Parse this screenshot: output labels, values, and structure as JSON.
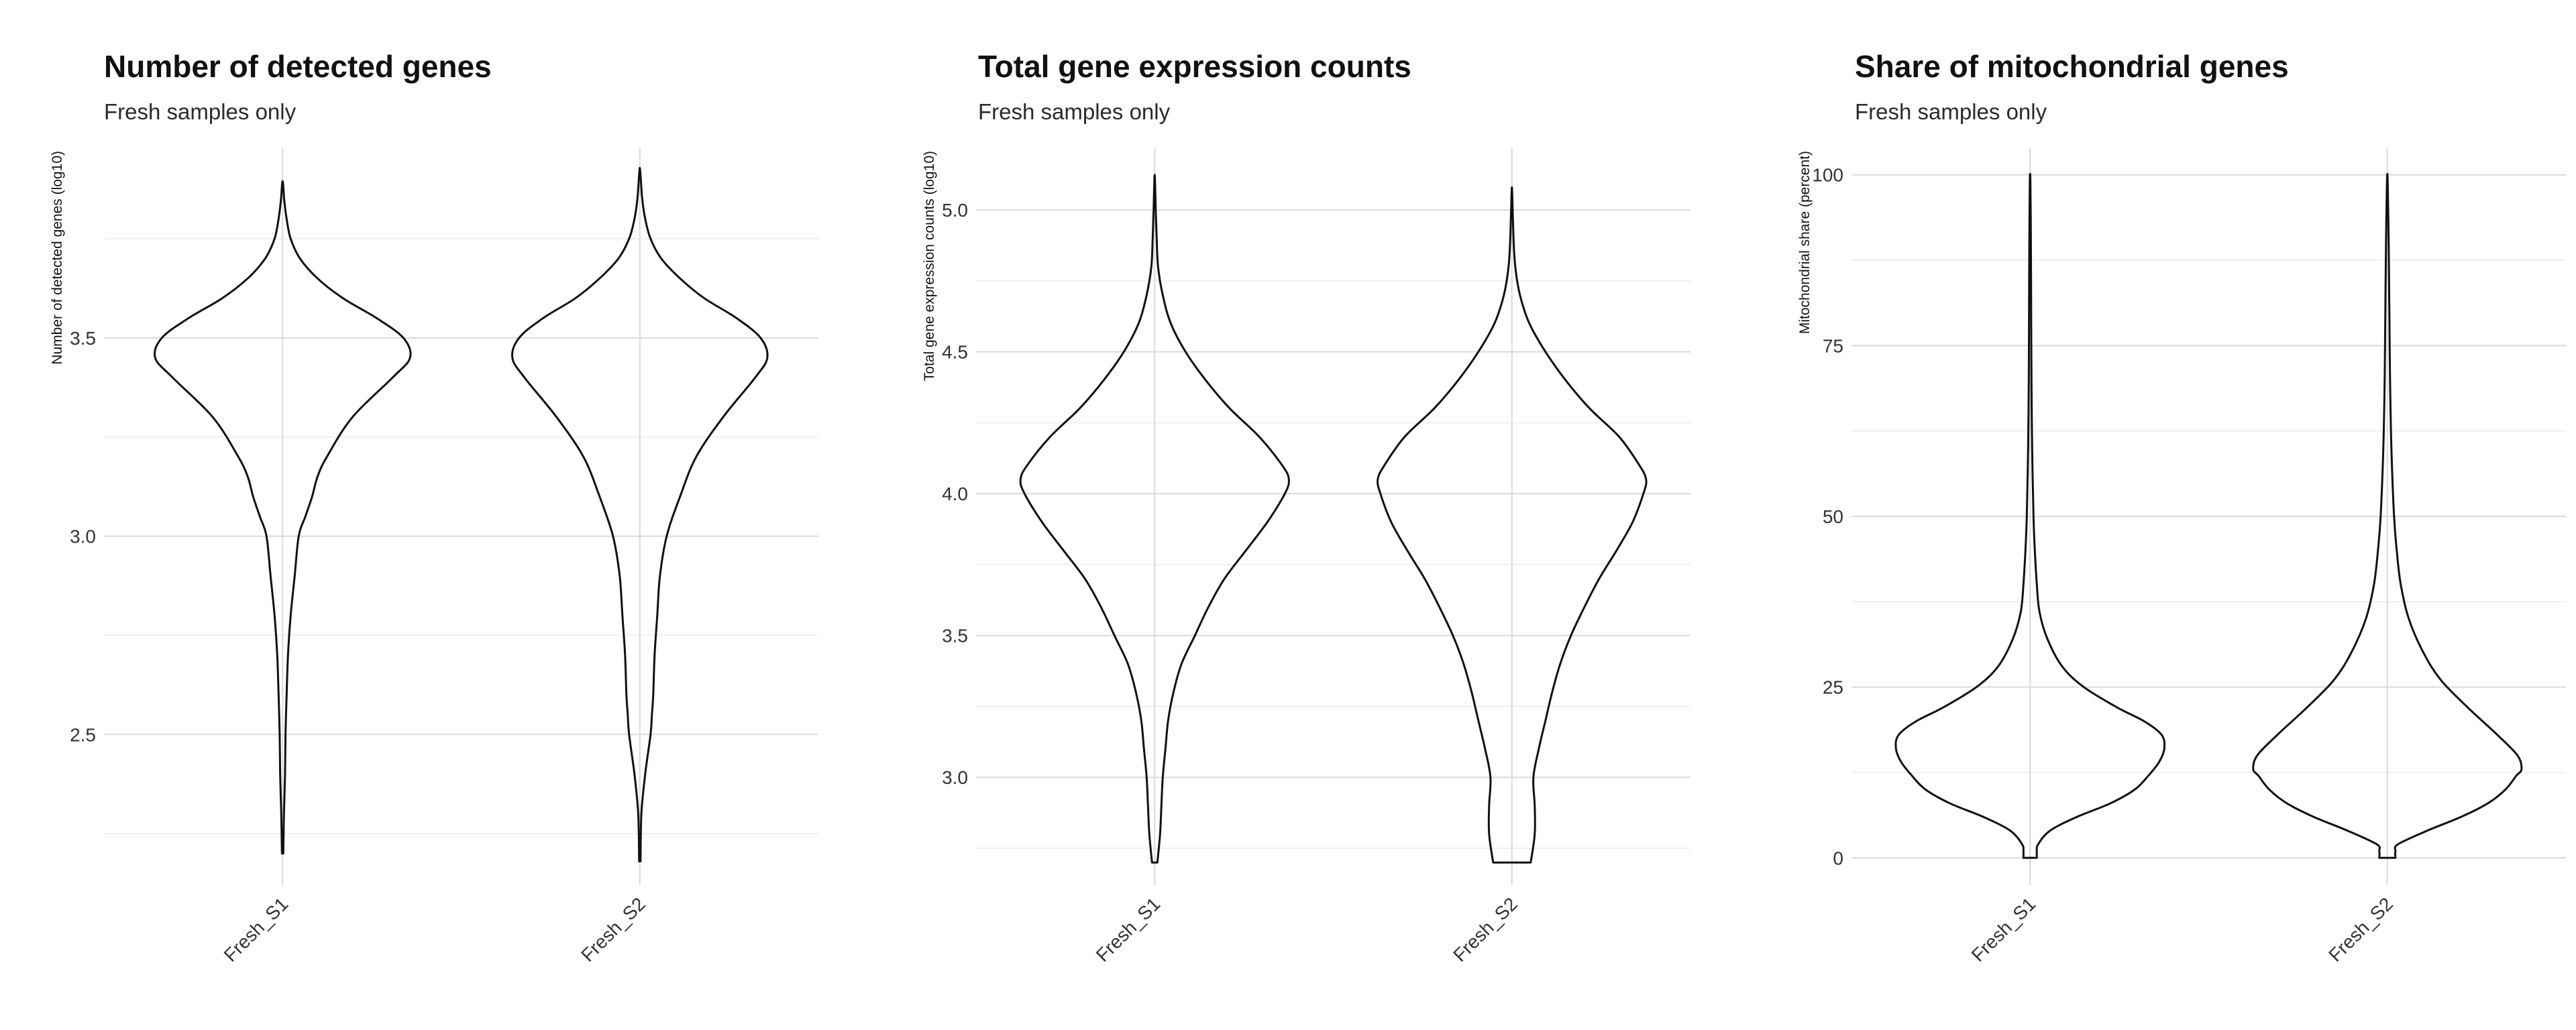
{
  "chart_data": [
    {
      "type": "violin",
      "title": "Number of detected genes",
      "subtitle": "Fresh samples only",
      "xlabel": "",
      "ylabel": "Number of detected genes (log10)",
      "ylim": [
        2.12,
        3.98
      ],
      "yticks": [
        2.5,
        3.0,
        3.5
      ],
      "ytick_labels": [
        "2.5",
        "3.0",
        "3.5"
      ],
      "minor_yticks": [
        2.25,
        2.75,
        3.25,
        3.75
      ],
      "categories": [
        "Fresh_S1",
        "Fresh_S2"
      ],
      "violins": [
        {
          "name": "Fresh_S1",
          "min": 2.2,
          "max": 3.89,
          "profile": [
            [
              2.2,
              0.005
            ],
            [
              2.3,
              0.01
            ],
            [
              2.4,
              0.018
            ],
            [
              2.5,
              0.022
            ],
            [
              2.6,
              0.03
            ],
            [
              2.7,
              0.04
            ],
            [
              2.8,
              0.06
            ],
            [
              2.9,
              0.09
            ],
            [
              3.0,
              0.12
            ],
            [
              3.05,
              0.17
            ],
            [
              3.1,
              0.22
            ],
            [
              3.15,
              0.26
            ],
            [
              3.2,
              0.33
            ],
            [
              3.3,
              0.52
            ],
            [
              3.4,
              0.82
            ],
            [
              3.45,
              0.95
            ],
            [
              3.5,
              0.9
            ],
            [
              3.55,
              0.7
            ],
            [
              3.6,
              0.45
            ],
            [
              3.65,
              0.26
            ],
            [
              3.7,
              0.13
            ],
            [
              3.75,
              0.06
            ],
            [
              3.8,
              0.03
            ],
            [
              3.85,
              0.012
            ],
            [
              3.89,
              0.003
            ]
          ]
        },
        {
          "name": "Fresh_S2",
          "min": 2.18,
          "max": 3.92,
          "profile": [
            [
              2.18,
              0.005
            ],
            [
              2.3,
              0.012
            ],
            [
              2.4,
              0.04
            ],
            [
              2.5,
              0.08
            ],
            [
              2.55,
              0.09
            ],
            [
              2.6,
              0.1
            ],
            [
              2.7,
              0.11
            ],
            [
              2.8,
              0.13
            ],
            [
              2.9,
              0.15
            ],
            [
              3.0,
              0.2
            ],
            [
              3.1,
              0.3
            ],
            [
              3.2,
              0.42
            ],
            [
              3.3,
              0.62
            ],
            [
              3.4,
              0.86
            ],
            [
              3.45,
              0.95
            ],
            [
              3.5,
              0.9
            ],
            [
              3.55,
              0.72
            ],
            [
              3.6,
              0.48
            ],
            [
              3.65,
              0.3
            ],
            [
              3.7,
              0.16
            ],
            [
              3.75,
              0.08
            ],
            [
              3.8,
              0.04
            ],
            [
              3.85,
              0.018
            ],
            [
              3.92,
              0.003
            ]
          ]
        }
      ]
    },
    {
      "type": "violin",
      "title": "Total gene expression counts",
      "subtitle": "Fresh samples only",
      "xlabel": "",
      "ylabel": "Total gene expression counts (log10)",
      "ylim": [
        2.62,
        5.22
      ],
      "yticks": [
        3.0,
        3.5,
        4.0,
        4.5,
        5.0
      ],
      "ytick_labels": [
        "3.0",
        "3.5",
        "4.0",
        "4.5",
        "5.0"
      ],
      "minor_yticks": [
        2.75,
        3.25,
        3.75,
        4.25,
        4.75
      ],
      "categories": [
        "Fresh_S1",
        "Fresh_S2"
      ],
      "violins": [
        {
          "name": "Fresh_S1",
          "min": 2.7,
          "max": 5.11,
          "profile": [
            [
              2.7,
              0.02
            ],
            [
              2.8,
              0.04
            ],
            [
              2.9,
              0.05
            ],
            [
              3.0,
              0.06
            ],
            [
              3.1,
              0.08
            ],
            [
              3.2,
              0.1
            ],
            [
              3.3,
              0.14
            ],
            [
              3.4,
              0.2
            ],
            [
              3.5,
              0.3
            ],
            [
              3.6,
              0.4
            ],
            [
              3.7,
              0.52
            ],
            [
              3.8,
              0.68
            ],
            [
              3.9,
              0.84
            ],
            [
              4.0,
              0.97
            ],
            [
              4.05,
              1.0
            ],
            [
              4.1,
              0.95
            ],
            [
              4.2,
              0.78
            ],
            [
              4.3,
              0.56
            ],
            [
              4.4,
              0.38
            ],
            [
              4.5,
              0.23
            ],
            [
              4.6,
              0.12
            ],
            [
              4.7,
              0.06
            ],
            [
              4.8,
              0.025
            ],
            [
              4.9,
              0.015
            ],
            [
              5.0,
              0.008
            ],
            [
              5.11,
              0.002
            ]
          ]
        },
        {
          "name": "Fresh_S2",
          "min": 2.7,
          "max": 5.06,
          "profile": [
            [
              2.7,
              0.14
            ],
            [
              2.8,
              0.17
            ],
            [
              2.9,
              0.17
            ],
            [
              3.0,
              0.16
            ],
            [
              3.1,
              0.2
            ],
            [
              3.2,
              0.25
            ],
            [
              3.3,
              0.3
            ],
            [
              3.4,
              0.36
            ],
            [
              3.5,
              0.44
            ],
            [
              3.6,
              0.54
            ],
            [
              3.7,
              0.65
            ],
            [
              3.8,
              0.78
            ],
            [
              3.9,
              0.9
            ],
            [
              4.0,
              0.98
            ],
            [
              4.05,
              1.0
            ],
            [
              4.1,
              0.95
            ],
            [
              4.2,
              0.8
            ],
            [
              4.3,
              0.58
            ],
            [
              4.4,
              0.4
            ],
            [
              4.5,
              0.25
            ],
            [
              4.6,
              0.13
            ],
            [
              4.7,
              0.06
            ],
            [
              4.8,
              0.025
            ],
            [
              4.9,
              0.012
            ],
            [
              5.06,
              0.002
            ]
          ]
        }
      ]
    },
    {
      "type": "violin",
      "title": "Share of mitochondrial genes",
      "subtitle": "Fresh samples only",
      "xlabel": "",
      "ylabel": "Mitochondrial share (percent)",
      "ylim": [
        -4,
        104
      ],
      "yticks": [
        0,
        25,
        50,
        75,
        100
      ],
      "ytick_labels": [
        "0",
        "25",
        "50",
        "75",
        "100"
      ],
      "minor_yticks": [
        12.5,
        37.5,
        62.5,
        87.5
      ],
      "categories": [
        "Fresh_S1",
        "Fresh_S2"
      ],
      "violins": [
        {
          "name": "Fresh_S1",
          "min": 0,
          "max": 99,
          "profile": [
            [
              0,
              0.05
            ],
            [
              1,
              0.05
            ],
            [
              2,
              0.06
            ],
            [
              4,
              0.15
            ],
            [
              6,
              0.35
            ],
            [
              8,
              0.6
            ],
            [
              10,
              0.78
            ],
            [
              12,
              0.88
            ],
            [
              14,
              0.96
            ],
            [
              16,
              1.0
            ],
            [
              18,
              0.98
            ],
            [
              20,
              0.85
            ],
            [
              22,
              0.65
            ],
            [
              25,
              0.4
            ],
            [
              28,
              0.24
            ],
            [
              32,
              0.13
            ],
            [
              36,
              0.07
            ],
            [
              40,
              0.05
            ],
            [
              45,
              0.035
            ],
            [
              50,
              0.025
            ],
            [
              60,
              0.015
            ],
            [
              70,
              0.01
            ],
            [
              80,
              0.008
            ],
            [
              90,
              0.006
            ],
            [
              99,
              0.002
            ]
          ]
        },
        {
          "name": "Fresh_S2",
          "min": 0,
          "max": 99,
          "profile": [
            [
              0,
              0.06
            ],
            [
              1,
              0.06
            ],
            [
              2,
              0.08
            ],
            [
              4,
              0.3
            ],
            [
              6,
              0.55
            ],
            [
              8,
              0.75
            ],
            [
              10,
              0.88
            ],
            [
              12,
              0.96
            ],
            [
              13,
              1.0
            ],
            [
              15,
              0.97
            ],
            [
              18,
              0.82
            ],
            [
              22,
              0.6
            ],
            [
              26,
              0.4
            ],
            [
              30,
              0.27
            ],
            [
              35,
              0.16
            ],
            [
              40,
              0.1
            ],
            [
              45,
              0.07
            ],
            [
              50,
              0.05
            ],
            [
              60,
              0.03
            ],
            [
              70,
              0.02
            ],
            [
              80,
              0.015
            ],
            [
              90,
              0.01
            ],
            [
              99,
              0.003
            ]
          ]
        }
      ]
    }
  ]
}
